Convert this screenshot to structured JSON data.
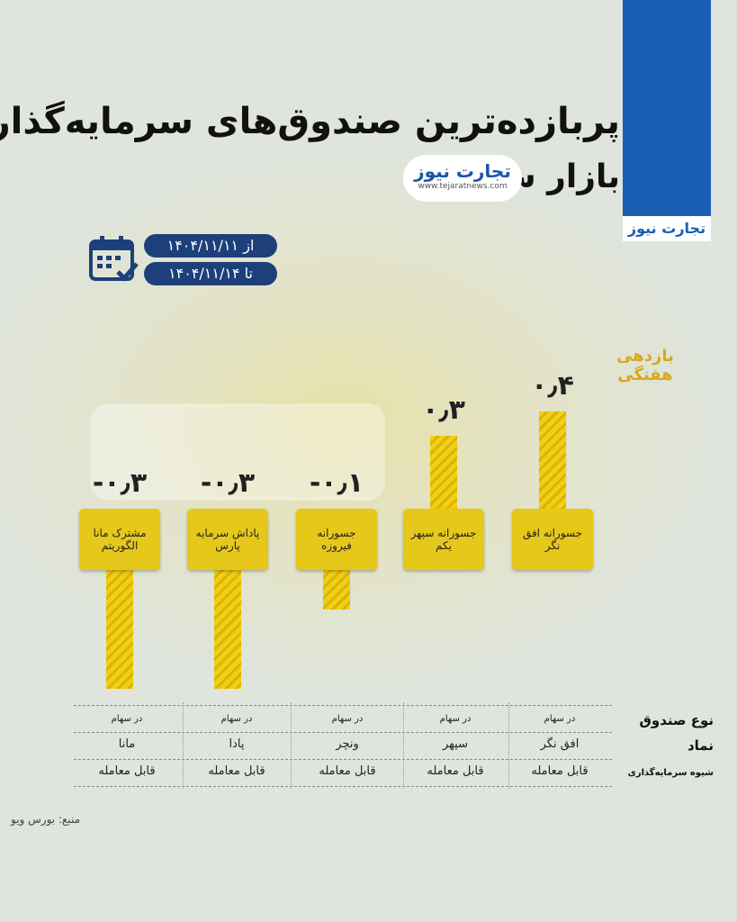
{
  "chart_data": {
    "type": "bar",
    "title": "پربازده‌ترین صندوق‌های سرمایه‌گذاری",
    "subtitle": "بازار سهام",
    "series_label": "بازدهی هفتگی",
    "categories": [
      "جسورانه افق نگر",
      "جسورانه سپهر یکم",
      "جسورانه فیروزه",
      "پاداش سرمایه پارس",
      "مشترک مانا الگوریتم"
    ],
    "values": [
      0.4,
      0.3,
      -0.1,
      -0.3,
      -0.3
    ],
    "value_labels": [
      "۰٫۴",
      "۰٫۳",
      "-۰٫۱",
      "-۰٫۳",
      "-۰٫۳"
    ]
  },
  "period": {
    "from": "از ۱۴۰۴/۱۱/۱۱",
    "to": "تا ۱۴۰۴/۱۱/۱۴"
  },
  "brand": {
    "name": "تجارت نیوز",
    "url": "www.tejaratnews.com"
  },
  "table": {
    "row_headers": [
      "نوع صندوق",
      "نماد",
      "شیوه سرمایه‌گذاری"
    ],
    "rows": [
      [
        "در سهام",
        "در سهام",
        "در سهام",
        "در سهام",
        "در سهام"
      ],
      [
        "افق نگر",
        "سپهر",
        "ونچر",
        "پادا",
        "مانا"
      ],
      [
        "قابل معامله",
        "قابل معامله",
        "قابل معامله",
        "قابل معامله",
        "قابل معامله"
      ]
    ]
  },
  "source": "منبع: بورس ویو"
}
